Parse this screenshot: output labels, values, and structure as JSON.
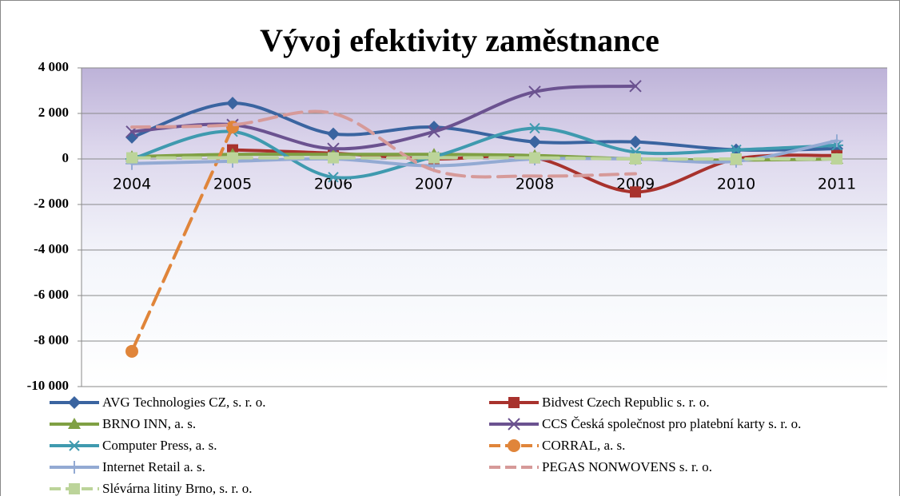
{
  "chart_data": {
    "type": "line",
    "title": "Vývoj efektivity zaměstnance",
    "categories": [
      "2004",
      "2005",
      "2006",
      "2007",
      "2008",
      "2009",
      "2010",
      "2011"
    ],
    "ylim": [
      -10000,
      4000
    ],
    "yticks": [
      {
        "value": -10000,
        "label": "-10 000"
      },
      {
        "value": -8000,
        "label": "-8 000"
      },
      {
        "value": -6000,
        "label": "-6 000"
      },
      {
        "value": -4000,
        "label": "-4 000"
      },
      {
        "value": -2000,
        "label": "-2 000"
      },
      0,
      {
        "value": 2000,
        "label": "2 000"
      },
      {
        "value": 4000,
        "label": "4 000"
      }
    ],
    "grid": true,
    "series": [
      {
        "name": "AVG Technologies CZ, s. r. o.",
        "color": "#3a64a0",
        "marker": "diamond",
        "values": [
          950,
          2450,
          1100,
          1400,
          750,
          750,
          400,
          450
        ]
      },
      {
        "name": "Bidvest Czech Republic s. r. o.",
        "color": "#a8322d",
        "marker": "square",
        "values": [
          null,
          400,
          250,
          0,
          50,
          -1450,
          0,
          150
        ]
      },
      {
        "name": "BRNO INN, a. s.",
        "color": "#7fa043",
        "marker": "triangle",
        "values": [
          100,
          200,
          200,
          200,
          150,
          0,
          -50,
          0
        ]
      },
      {
        "name": "CCS Česká společnost pro platební karty s. r. o.",
        "color": "#6b5290",
        "marker": "cross",
        "values": [
          1200,
          1500,
          450,
          1200,
          2950,
          3200,
          null,
          null
        ]
      },
      {
        "name": "Computer Press, a. s.",
        "color": "#3f9aaf",
        "marker": "star",
        "values": [
          0,
          1200,
          -800,
          100,
          1350,
          300,
          400,
          600
        ]
      },
      {
        "name": "CORRAL, a. s.",
        "color": "#e0853a",
        "marker": "circle",
        "dashed": true,
        "values": [
          -8450,
          1400,
          null,
          null,
          null,
          null,
          null,
          null
        ]
      },
      {
        "name": "Internet Retail a. s.",
        "color": "#93aad3",
        "marker": "plus",
        "values": [
          -200,
          -100,
          0,
          -300,
          0,
          0,
          -100,
          800
        ]
      },
      {
        "name": "PEGAS NONWOVENS s. r. o.",
        "color": "#d69a99",
        "marker": "none",
        "dashed": true,
        "values": [
          1400,
          1500,
          2000,
          -500,
          -750,
          -650,
          null,
          null
        ]
      },
      {
        "name": "Slévárna litiny Brno, s. r. o.",
        "color": "#bcd49a",
        "marker": "square",
        "dashed": true,
        "values": [
          50,
          50,
          50,
          50,
          50,
          0,
          0,
          0
        ]
      }
    ]
  }
}
